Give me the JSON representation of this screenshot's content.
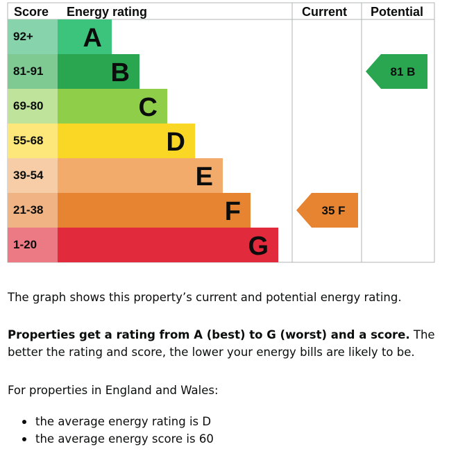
{
  "chart_data": {
    "type": "energy-rating",
    "headers": {
      "score": "Score",
      "rating": "Energy rating",
      "current": "Current",
      "potential": "Potential"
    },
    "bands": [
      {
        "letter": "A",
        "range": "92+",
        "bar_color": "#3cc47c",
        "score_bg": "#86d3ac"
      },
      {
        "letter": "B",
        "range": "81-91",
        "bar_color": "#2aa650",
        "score_bg": "#7fca93"
      },
      {
        "letter": "C",
        "range": "69-80",
        "bar_color": "#8fce48",
        "score_bg": "#bfe39b"
      },
      {
        "letter": "D",
        "range": "55-68",
        "bar_color": "#fbd725",
        "score_bg": "#fde77b"
      },
      {
        "letter": "E",
        "range": "39-54",
        "bar_color": "#f3ab6b",
        "score_bg": "#f7cda8"
      },
      {
        "letter": "F",
        "range": "21-38",
        "bar_color": "#e78431",
        "score_bg": "#f0b383"
      },
      {
        "letter": "G",
        "range": "1-20",
        "bar_color": "#e12a3c",
        "score_bg": "#ec7a85"
      }
    ],
    "current": {
      "score": 35,
      "letter": "F",
      "label": "35 F",
      "color": "#e78431"
    },
    "potential": {
      "score": 81,
      "letter": "B",
      "label": "81 B",
      "color": "#2aa650"
    }
  },
  "text": {
    "p1": "The graph shows this property’s current and potential energy rating.",
    "p2_bold": "Properties get a rating from A (best) to G (worst) and a score.",
    "p2_rest": " The better the rating and score, the lower your energy bills are likely to be.",
    "p3": "For properties in England and Wales:",
    "bullets": [
      "the average energy rating is D",
      "the average energy score is 60"
    ]
  }
}
